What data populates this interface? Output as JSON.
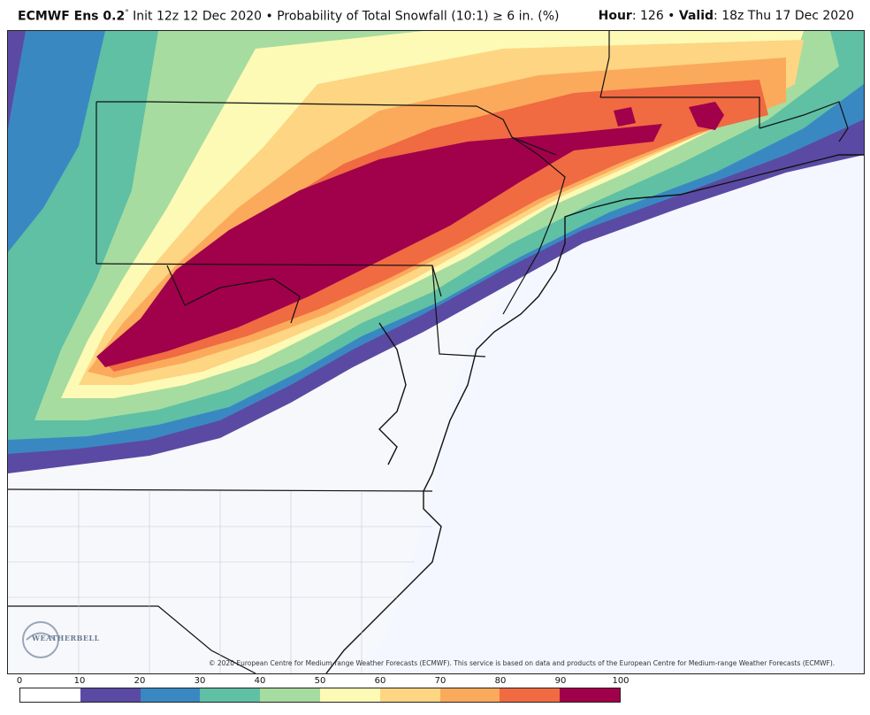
{
  "header": {
    "model": "ECMWF Ens 0.2",
    "degree": "°",
    "init": " Init 12z 12 Dec 2020",
    "separator": " • ",
    "product": "Probability of Total Snowfall (10:1) ≥  6 in. (%)",
    "hour_label": "Hour",
    "hour_value": ": 126 • ",
    "valid_label": "Valid",
    "valid_value": ": 18z Thu 17 Dec 2020"
  },
  "map": {
    "copyright": "© 2020 European Centre for Medium-range Weather Forecasts (ECMWF). This service is based on data and products of the European Centre for Medium-range Weather Forecasts (ECMWF).",
    "logo_text": "WEATHERBELL",
    "ocean_color": "#f4f7ff",
    "land_color": "#f7f8fc"
  },
  "colorbar": {
    "ticks": [
      "0",
      "10",
      "20",
      "30",
      "40",
      "50",
      "60",
      "70",
      "80",
      "90",
      "100"
    ],
    "colors": [
      "#ffffff",
      "#5b4aa3",
      "#3a88c2",
      "#5fc0a4",
      "#a7dca0",
      "#fdfab6",
      "#fdd583",
      "#fbaa5c",
      "#f06a42",
      "#a1004a"
    ]
  }
}
